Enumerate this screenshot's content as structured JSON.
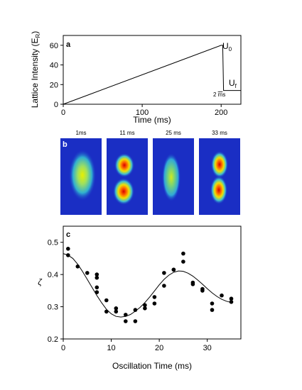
{
  "chart_data": [
    {
      "panel": "a",
      "type": "line",
      "xlabel": "Time (ms)",
      "ylabel": "Lattice Intensity  (E",
      "ylabel_sub": "R",
      "ylabel_close": ")",
      "xlim": [
        0,
        225
      ],
      "ylim": [
        0,
        70
      ],
      "xticks": [
        0,
        100,
        200
      ],
      "yticks": [
        0,
        20,
        40,
        60
      ],
      "series": [
        {
          "x": [
            0,
            200,
            202,
            203,
            225
          ],
          "y": [
            0,
            60,
            60,
            14,
            14
          ]
        }
      ],
      "annotations": {
        "u0_main": "U",
        "u0_sub": "0",
        "uf_main": "U",
        "uf_sub": "f",
        "ramp_pre": "2 ",
        "ramp_m": "m",
        "ramp_post": "s"
      }
    },
    {
      "panel": "b",
      "type": "heatmap",
      "labels": [
        "1ms",
        "11 ms",
        "25 ms",
        "33 ms"
      ]
    },
    {
      "panel": "c",
      "type": "scatter",
      "xlabel": "Oscillation Time (ms)",
      "ylabel": "ζ",
      "xlim": [
        0,
        37
      ],
      "ylim": [
        0.2,
        0.55
      ],
      "xticks": [
        0,
        10,
        20,
        30
      ],
      "yticks": [
        0.2,
        0.3,
        0.4,
        0.5
      ],
      "points": [
        [
          1,
          0.48
        ],
        [
          1,
          0.46
        ],
        [
          3,
          0.425
        ],
        [
          5,
          0.405
        ],
        [
          7,
          0.4
        ],
        [
          7,
          0.39
        ],
        [
          7,
          0.36
        ],
        [
          7,
          0.345
        ],
        [
          9,
          0.32
        ],
        [
          9,
          0.285
        ],
        [
          11,
          0.295
        ],
        [
          11,
          0.285
        ],
        [
          13,
          0.275
        ],
        [
          13,
          0.255
        ],
        [
          15,
          0.29
        ],
        [
          15,
          0.255
        ],
        [
          17,
          0.305
        ],
        [
          17,
          0.295
        ],
        [
          19,
          0.33
        ],
        [
          19,
          0.31
        ],
        [
          21,
          0.405
        ],
        [
          21,
          0.365
        ],
        [
          23,
          0.415
        ],
        [
          23,
          0.415
        ],
        [
          25,
          0.465
        ],
        [
          25,
          0.44
        ],
        [
          27,
          0.375
        ],
        [
          27,
          0.37
        ],
        [
          29,
          0.355
        ],
        [
          29,
          0.35
        ],
        [
          31,
          0.31
        ],
        [
          31,
          0.29
        ],
        [
          33,
          0.335
        ],
        [
          35,
          0.325
        ],
        [
          35,
          0.315
        ]
      ],
      "fit": {
        "x": [
          0,
          1,
          2,
          3,
          4,
          5,
          6,
          7,
          8,
          9,
          10,
          11,
          12,
          13,
          14,
          15,
          16,
          17,
          18,
          19,
          20,
          21,
          22,
          23,
          24,
          25,
          26,
          27,
          28,
          29,
          30,
          31,
          32,
          33,
          34,
          35
        ],
        "y": [
          0.465,
          0.46,
          0.45,
          0.432,
          0.41,
          0.385,
          0.36,
          0.335,
          0.312,
          0.292,
          0.278,
          0.27,
          0.268,
          0.27,
          0.276,
          0.286,
          0.298,
          0.313,
          0.33,
          0.349,
          0.368,
          0.385,
          0.398,
          0.407,
          0.411,
          0.41,
          0.404,
          0.395,
          0.383,
          0.37,
          0.356,
          0.343,
          0.332,
          0.323,
          0.317,
          0.313
        ]
      }
    }
  ]
}
